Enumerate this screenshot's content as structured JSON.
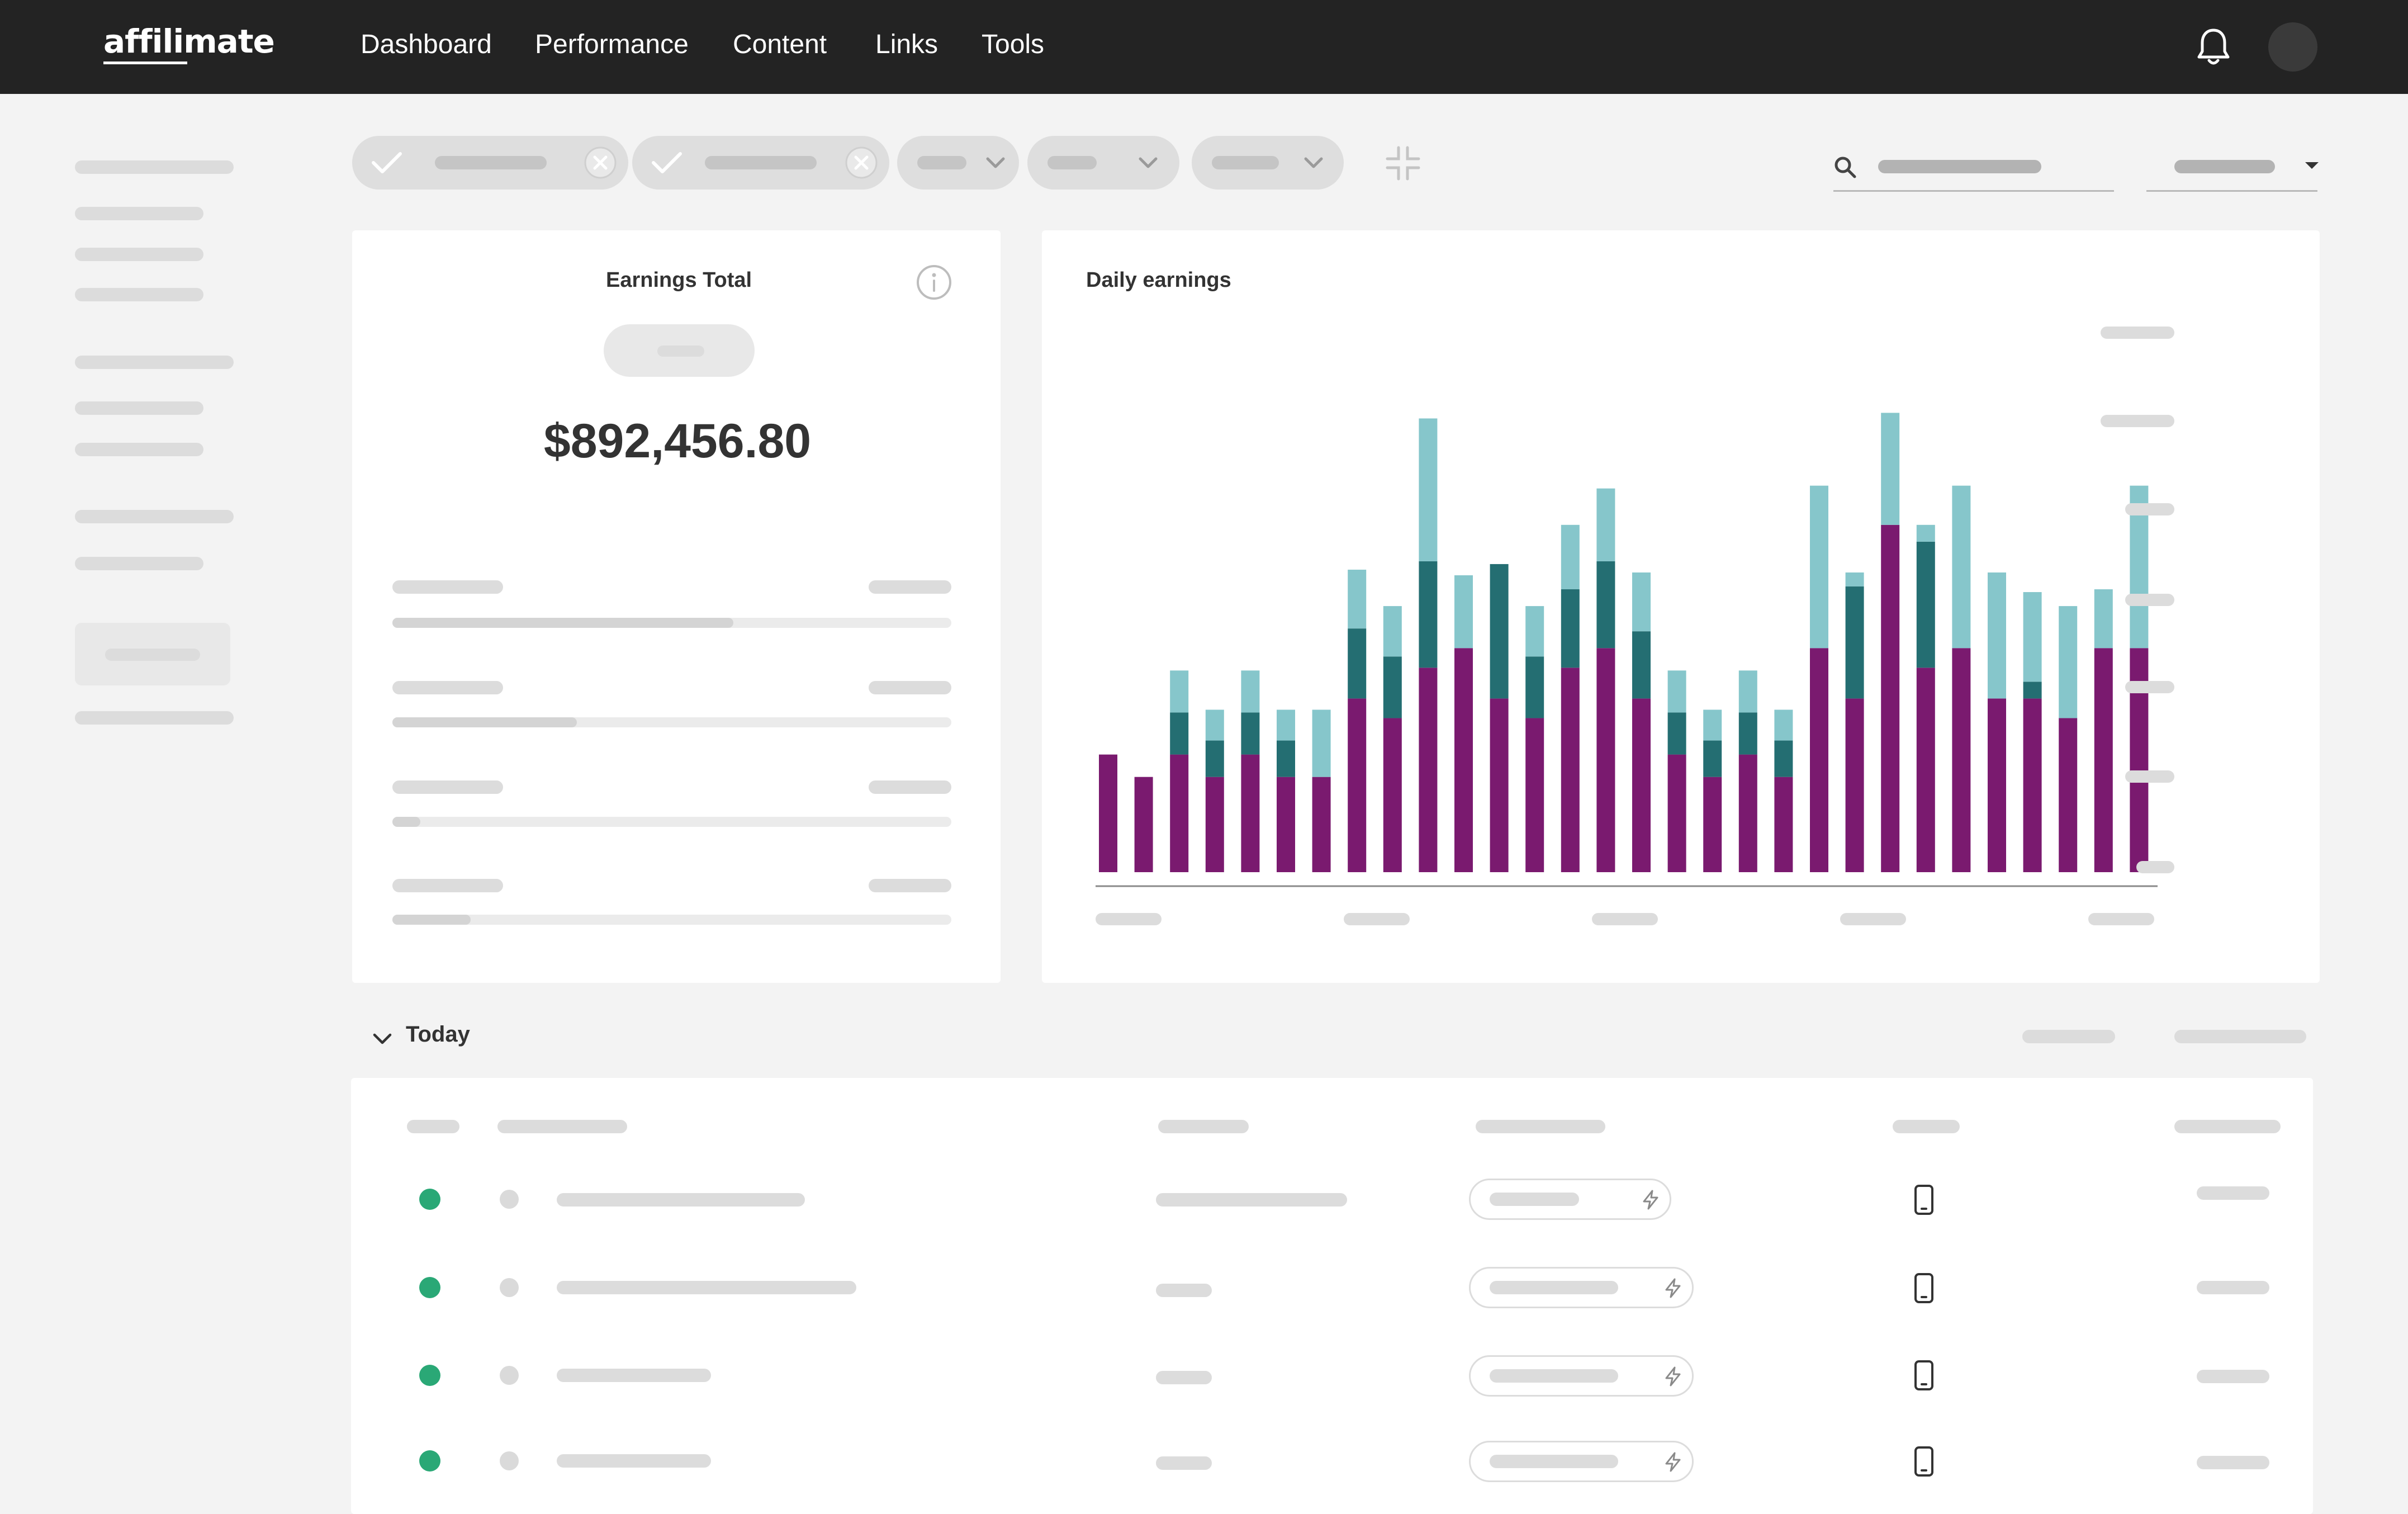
{
  "app": {
    "logo_text": "affilimate"
  },
  "nav": {
    "items": [
      {
        "label": "Dashboard"
      },
      {
        "label": "Performance"
      },
      {
        "label": "Content"
      },
      {
        "label": "Links"
      },
      {
        "label": "Tools"
      }
    ],
    "notifications_icon": "bell-icon",
    "avatar_icon": "user-avatar"
  },
  "filters": {
    "chip_icons": [
      "check-icon",
      "close-icon",
      "chevron-down-icon"
    ],
    "collapse_icon": "collapse-icon",
    "search_icon": "search-icon"
  },
  "earnings_card": {
    "title": "Earnings Total",
    "value": "$892,456.80",
    "info_icon": "info-icon",
    "progress": [
      0.61,
      0.33,
      0.05,
      0.14
    ]
  },
  "daily_card": {
    "title": "Daily earnings"
  },
  "section": {
    "title": "Today",
    "caret_icon": "chevron-down-icon"
  },
  "table": {
    "rows": 4,
    "device_icon": "mobile-phone-icon",
    "status_icon": "lightning-icon"
  },
  "colors": {
    "topbar": "#232323",
    "series_primary": "#7a1a6f",
    "series_secondary": "#246e72",
    "series_tertiary": "#86c6cb",
    "status_green": "#2aa876"
  },
  "chart_data": {
    "type": "bar",
    "stacked": true,
    "grid": false,
    "x_tick_labels_visible": false,
    "y_tick_labels_visible": false,
    "series": [
      {
        "values": [
          42,
          34,
          42,
          34,
          42,
          34,
          34,
          62,
          55,
          73,
          80,
          62,
          55,
          73,
          80,
          62,
          42,
          34,
          42,
          34,
          80,
          62,
          124,
          73,
          80,
          62,
          62,
          55,
          80,
          80
        ]
      },
      {
        "values": [
          0,
          0,
          15,
          13,
          15,
          13,
          0,
          25,
          22,
          38,
          0,
          48,
          22,
          28,
          31,
          24,
          15,
          13,
          15,
          13,
          0,
          40,
          0,
          45,
          0,
          0,
          6,
          0,
          0,
          0
        ]
      },
      {
        "values": [
          0,
          0,
          15,
          11,
          15,
          11,
          24,
          21,
          18,
          51,
          26,
          0,
          18,
          23,
          26,
          21,
          15,
          11,
          15,
          11,
          58,
          5,
          40,
          6,
          58,
          45,
          32,
          40,
          21,
          58
        ]
      }
    ]
  }
}
